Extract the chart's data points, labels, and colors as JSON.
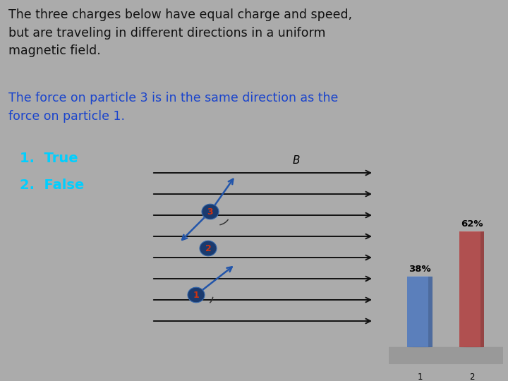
{
  "background_color": "#ababab",
  "title_text_black": "The three charges below have equal charge and speed,\nbut are traveling in different directions in a uniform\nmagnetic field.",
  "title_text_blue": "The force on particle 3 is in the same direction as the\nforce on particle 1.",
  "choices": [
    "1.  True",
    "2.  False"
  ],
  "choice_color": "#00cfff",
  "bar_values": [
    38,
    62
  ],
  "bar_colors": [
    "#5b7fbb",
    "#b05050"
  ],
  "bar_labels": [
    "38%",
    "62%"
  ],
  "bar_xticks": [
    "1",
    "2"
  ],
  "field_color": "#111111",
  "particle_color": "#1a3a6e",
  "particle_text_color": "#cc3311",
  "arrow_color": "#2255aa",
  "blue_text_color": "#1a44cc",
  "text_black": "#111111"
}
